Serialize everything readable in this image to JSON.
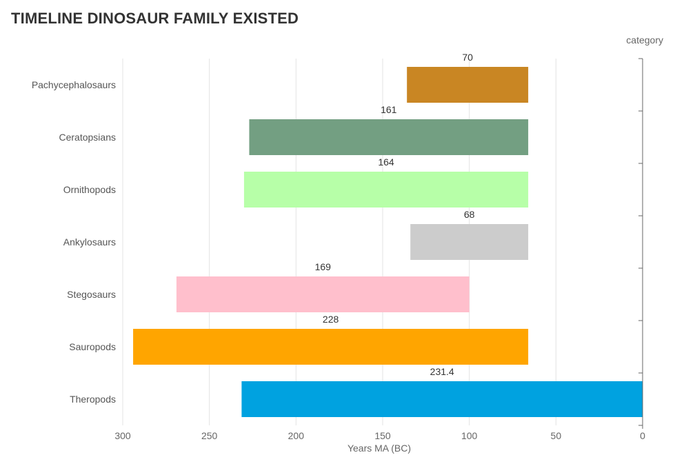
{
  "chart_data": {
    "type": "bar",
    "orientation": "horizontal-floating",
    "title": "TIMELINE DINOSAUR FAMILY EXISTED",
    "xlabel": "Years MA (BC)",
    "ylabel": "category",
    "xlim": [
      300,
      0
    ],
    "x_ticks": [
      300,
      250,
      200,
      150,
      100,
      50,
      0
    ],
    "grid": true,
    "categories": [
      "Pachycephalosaurs",
      "Ceratopsians",
      "Ornithopods",
      "Ankylosaurs",
      "Stegosaurs",
      "Sauropods",
      "Theropods"
    ],
    "series": [
      {
        "data": [
          {
            "category": "Pachycephalosaurs",
            "start": 136,
            "end": 66,
            "label": "70",
            "color": "#C98623"
          },
          {
            "category": "Ceratopsians",
            "start": 227,
            "end": 66,
            "label": "161",
            "color": "#739F82"
          },
          {
            "category": "Ornithopods",
            "start": 230,
            "end": 66,
            "label": "164",
            "color": "#B7FFA8"
          },
          {
            "category": "Ankylosaurs",
            "start": 134,
            "end": 66,
            "label": "68",
            "color": "#CCCCCC"
          },
          {
            "category": "Stegosaurs",
            "start": 269,
            "end": 100,
            "label": "169",
            "color": "#FFBFCC"
          },
          {
            "category": "Sauropods",
            "start": 294,
            "end": 66,
            "label": "228",
            "color": "#FFA500"
          },
          {
            "category": "Theropods",
            "start": 231.4,
            "end": 0,
            "label": "231.4",
            "color": "#00A2E0"
          }
        ]
      }
    ]
  }
}
